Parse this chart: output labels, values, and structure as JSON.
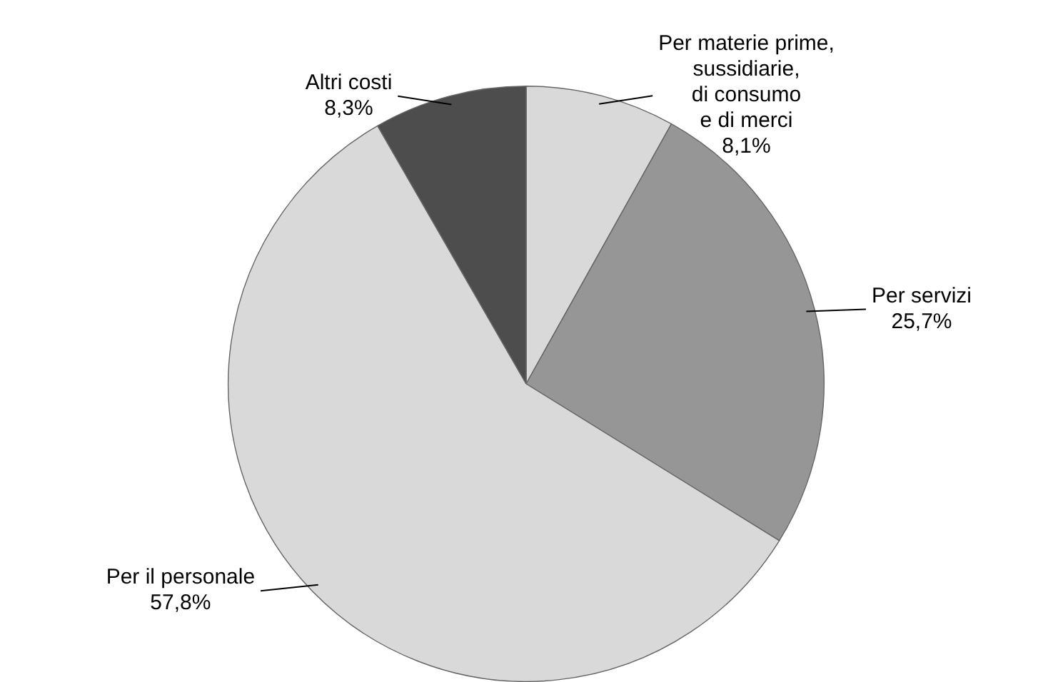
{
  "chart_data": {
    "type": "pie",
    "categories": [
      "Per materie prime,\nsussidiarie,\ndi consumo\ne di merci",
      "Per servizi",
      "Per il personale",
      "Altri costi"
    ],
    "values": [
      8.1,
      25.7,
      57.8,
      8.3
    ],
    "value_labels": [
      "8,1%",
      "25,7%",
      "57,8%",
      "8,3%"
    ],
    "colors": [
      "#d9d9d9",
      "#969696",
      "#d9d9d9",
      "#4d4d4d"
    ],
    "legend": false
  }
}
